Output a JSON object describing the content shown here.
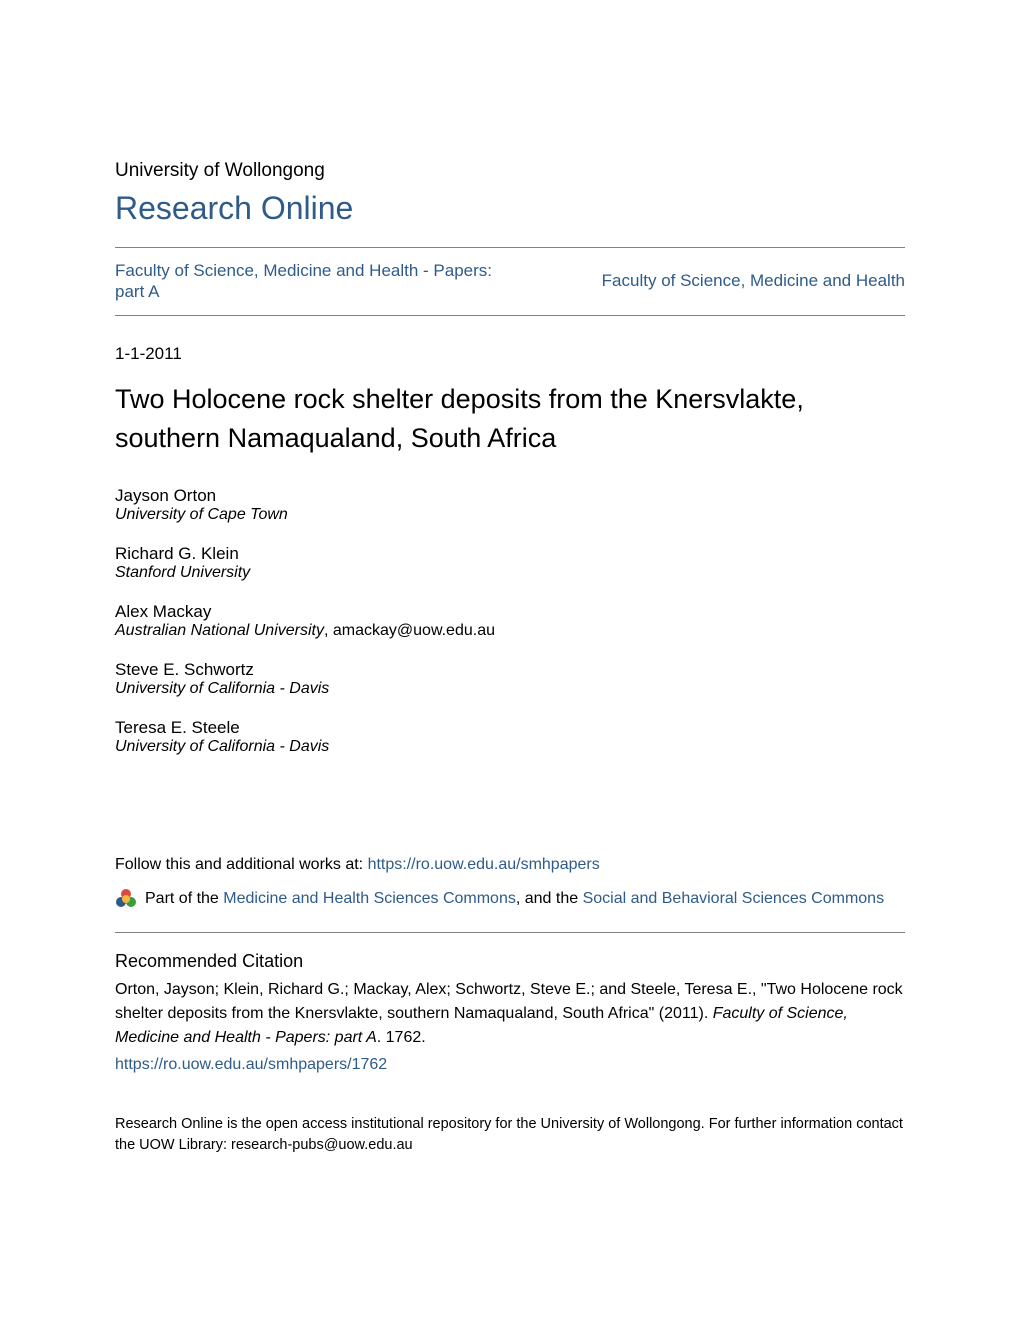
{
  "colors": {
    "link": "#2e5b8a",
    "text": "#000000",
    "rule": "#808080",
    "background": "#ffffff",
    "icon_ring_colors": [
      "#d94d3a",
      "#2e5b8a",
      "#3a9d3a",
      "#f2b840"
    ]
  },
  "typography": {
    "body_font": "Arial, Helvetica, sans-serif",
    "title_fontsize": 27,
    "research_online_fontsize": 32,
    "body_fontsize": 16,
    "small_fontsize": 14.5
  },
  "header": {
    "university": "University of Wollongong",
    "site_name": "Research Online"
  },
  "faculty": {
    "left": "Faculty of Science, Medicine and Health - Papers: part A",
    "right": "Faculty of Science, Medicine and Health"
  },
  "date": "1-1-2011",
  "title": "Two Holocene rock shelter deposits from the Knersvlakte, southern Namaqualand, South Africa",
  "authors": [
    {
      "name": "Jayson Orton",
      "affil": "University of Cape Town",
      "email": ""
    },
    {
      "name": "Richard G. Klein",
      "affil": "Stanford University",
      "email": ""
    },
    {
      "name": "Alex Mackay",
      "affil": "Australian National University",
      "email": ", amackay@uow.edu.au"
    },
    {
      "name": "Steve E. Schwortz",
      "affil": "University of California - Davis",
      "email": ""
    },
    {
      "name": "Teresa E. Steele",
      "affil": "University of California - Davis",
      "email": ""
    }
  ],
  "follow": {
    "prefix": "Follow this and additional works at: ",
    "url": "https://ro.uow.edu.au/smhpapers"
  },
  "partof": {
    "prefix": "Part of the ",
    "link1": "Medicine and Health Sciences Commons",
    "joiner": ", and the ",
    "link2": "Social and Behavioral Sciences Commons"
  },
  "citation": {
    "heading": "Recommended Citation",
    "text_plain_1": "Orton, Jayson; Klein, Richard G.; Mackay, Alex; Schwortz, Steve E.; and Steele, Teresa E., \"Two Holocene rock shelter deposits from the Knersvlakte, southern Namaqualand, South Africa\" (2011). ",
    "text_italic": "Faculty of Science, Medicine and Health - Papers: part A",
    "text_plain_2": ". 1762.",
    "url": "https://ro.uow.edu.au/smhpapers/1762"
  },
  "footer": "Research Online is the open access institutional repository for the University of Wollongong. For further information contact the UOW Library: research-pubs@uow.edu.au"
}
